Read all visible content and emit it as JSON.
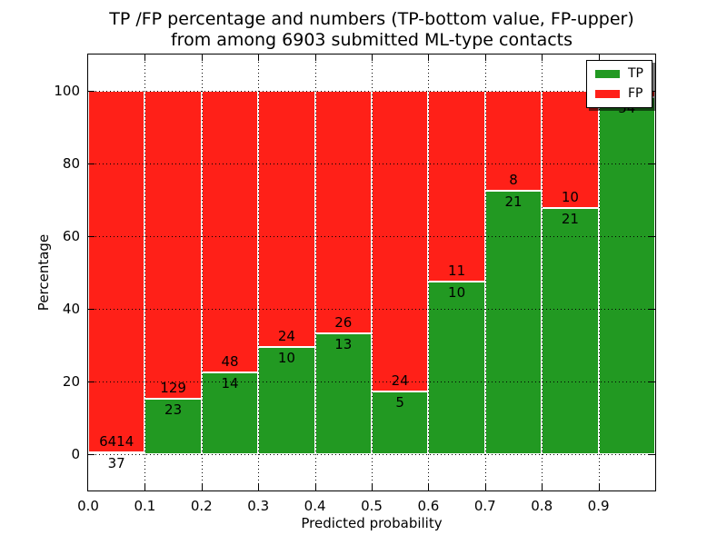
{
  "chart_data": {
    "type": "bar",
    "stacked": true,
    "title_line1": "TP /FP percentage and numbers (TP-bottom value, FP-upper)",
    "title_line2": "from among 6903 submitted ML-type contacts",
    "xlabel": "Predicted probability",
    "ylabel": "Percentage",
    "total_submitted_contacts": 6903,
    "xlim": [
      0.0,
      1.0
    ],
    "ylim": [
      -10,
      110
    ],
    "x_tick_labels": [
      "0.0",
      "0.1",
      "0.2",
      "0.3",
      "0.4",
      "0.5",
      "0.6",
      "0.7",
      "0.8",
      "0.9"
    ],
    "y_tick_values": [
      0,
      20,
      40,
      60,
      80,
      100
    ],
    "grid_style": "dotted",
    "colors": {
      "tp": "#229922",
      "fp": "#ff2018",
      "bar_edge": "#ffffff"
    },
    "bins": [
      {
        "x_start": 0.0,
        "x_end": 0.1,
        "tp_count": 37,
        "fp_count": 6414,
        "tp_pct": 0.57,
        "tp_label": "37",
        "fp_label": "6414"
      },
      {
        "x_start": 0.1,
        "x_end": 0.2,
        "tp_count": 23,
        "fp_count": 129,
        "tp_pct": 15.13,
        "tp_label": "23",
        "fp_label": "129"
      },
      {
        "x_start": 0.2,
        "x_end": 0.3,
        "tp_count": 14,
        "fp_count": 48,
        "tp_pct": 22.58,
        "tp_label": "14",
        "fp_label": "48"
      },
      {
        "x_start": 0.3,
        "x_end": 0.4,
        "tp_count": 10,
        "fp_count": 24,
        "tp_pct": 29.41,
        "tp_label": "10",
        "fp_label": "24"
      },
      {
        "x_start": 0.4,
        "x_end": 0.5,
        "tp_count": 13,
        "fp_count": 26,
        "tp_pct": 33.33,
        "tp_label": "13",
        "fp_label": "26"
      },
      {
        "x_start": 0.5,
        "x_end": 0.6,
        "tp_count": 5,
        "fp_count": 24,
        "tp_pct": 17.24,
        "tp_label": "5",
        "fp_label": "24"
      },
      {
        "x_start": 0.6,
        "x_end": 0.7,
        "tp_count": 10,
        "fp_count": 11,
        "tp_pct": 47.62,
        "tp_label": "10",
        "fp_label": "11"
      },
      {
        "x_start": 0.7,
        "x_end": 0.8,
        "tp_count": 21,
        "fp_count": 8,
        "tp_pct": 72.41,
        "tp_label": "21",
        "fp_label": "8"
      },
      {
        "x_start": 0.8,
        "x_end": 0.9,
        "tp_count": 21,
        "fp_count": 10,
        "tp_pct": 67.74,
        "tp_label": "21",
        "fp_label": "10"
      },
      {
        "x_start": 0.9,
        "x_end": 1.0,
        "tp_count": 54,
        "fp_count": 1,
        "tp_pct": 98.18,
        "tp_label": "54",
        "fp_label": "",
        "fp_label_hidden_by_legend": true
      }
    ],
    "legend": {
      "position": "upper right",
      "entries": [
        {
          "label": "TP",
          "color": "#229922"
        },
        {
          "label": "FP",
          "color": "#ff2018"
        }
      ]
    }
  }
}
